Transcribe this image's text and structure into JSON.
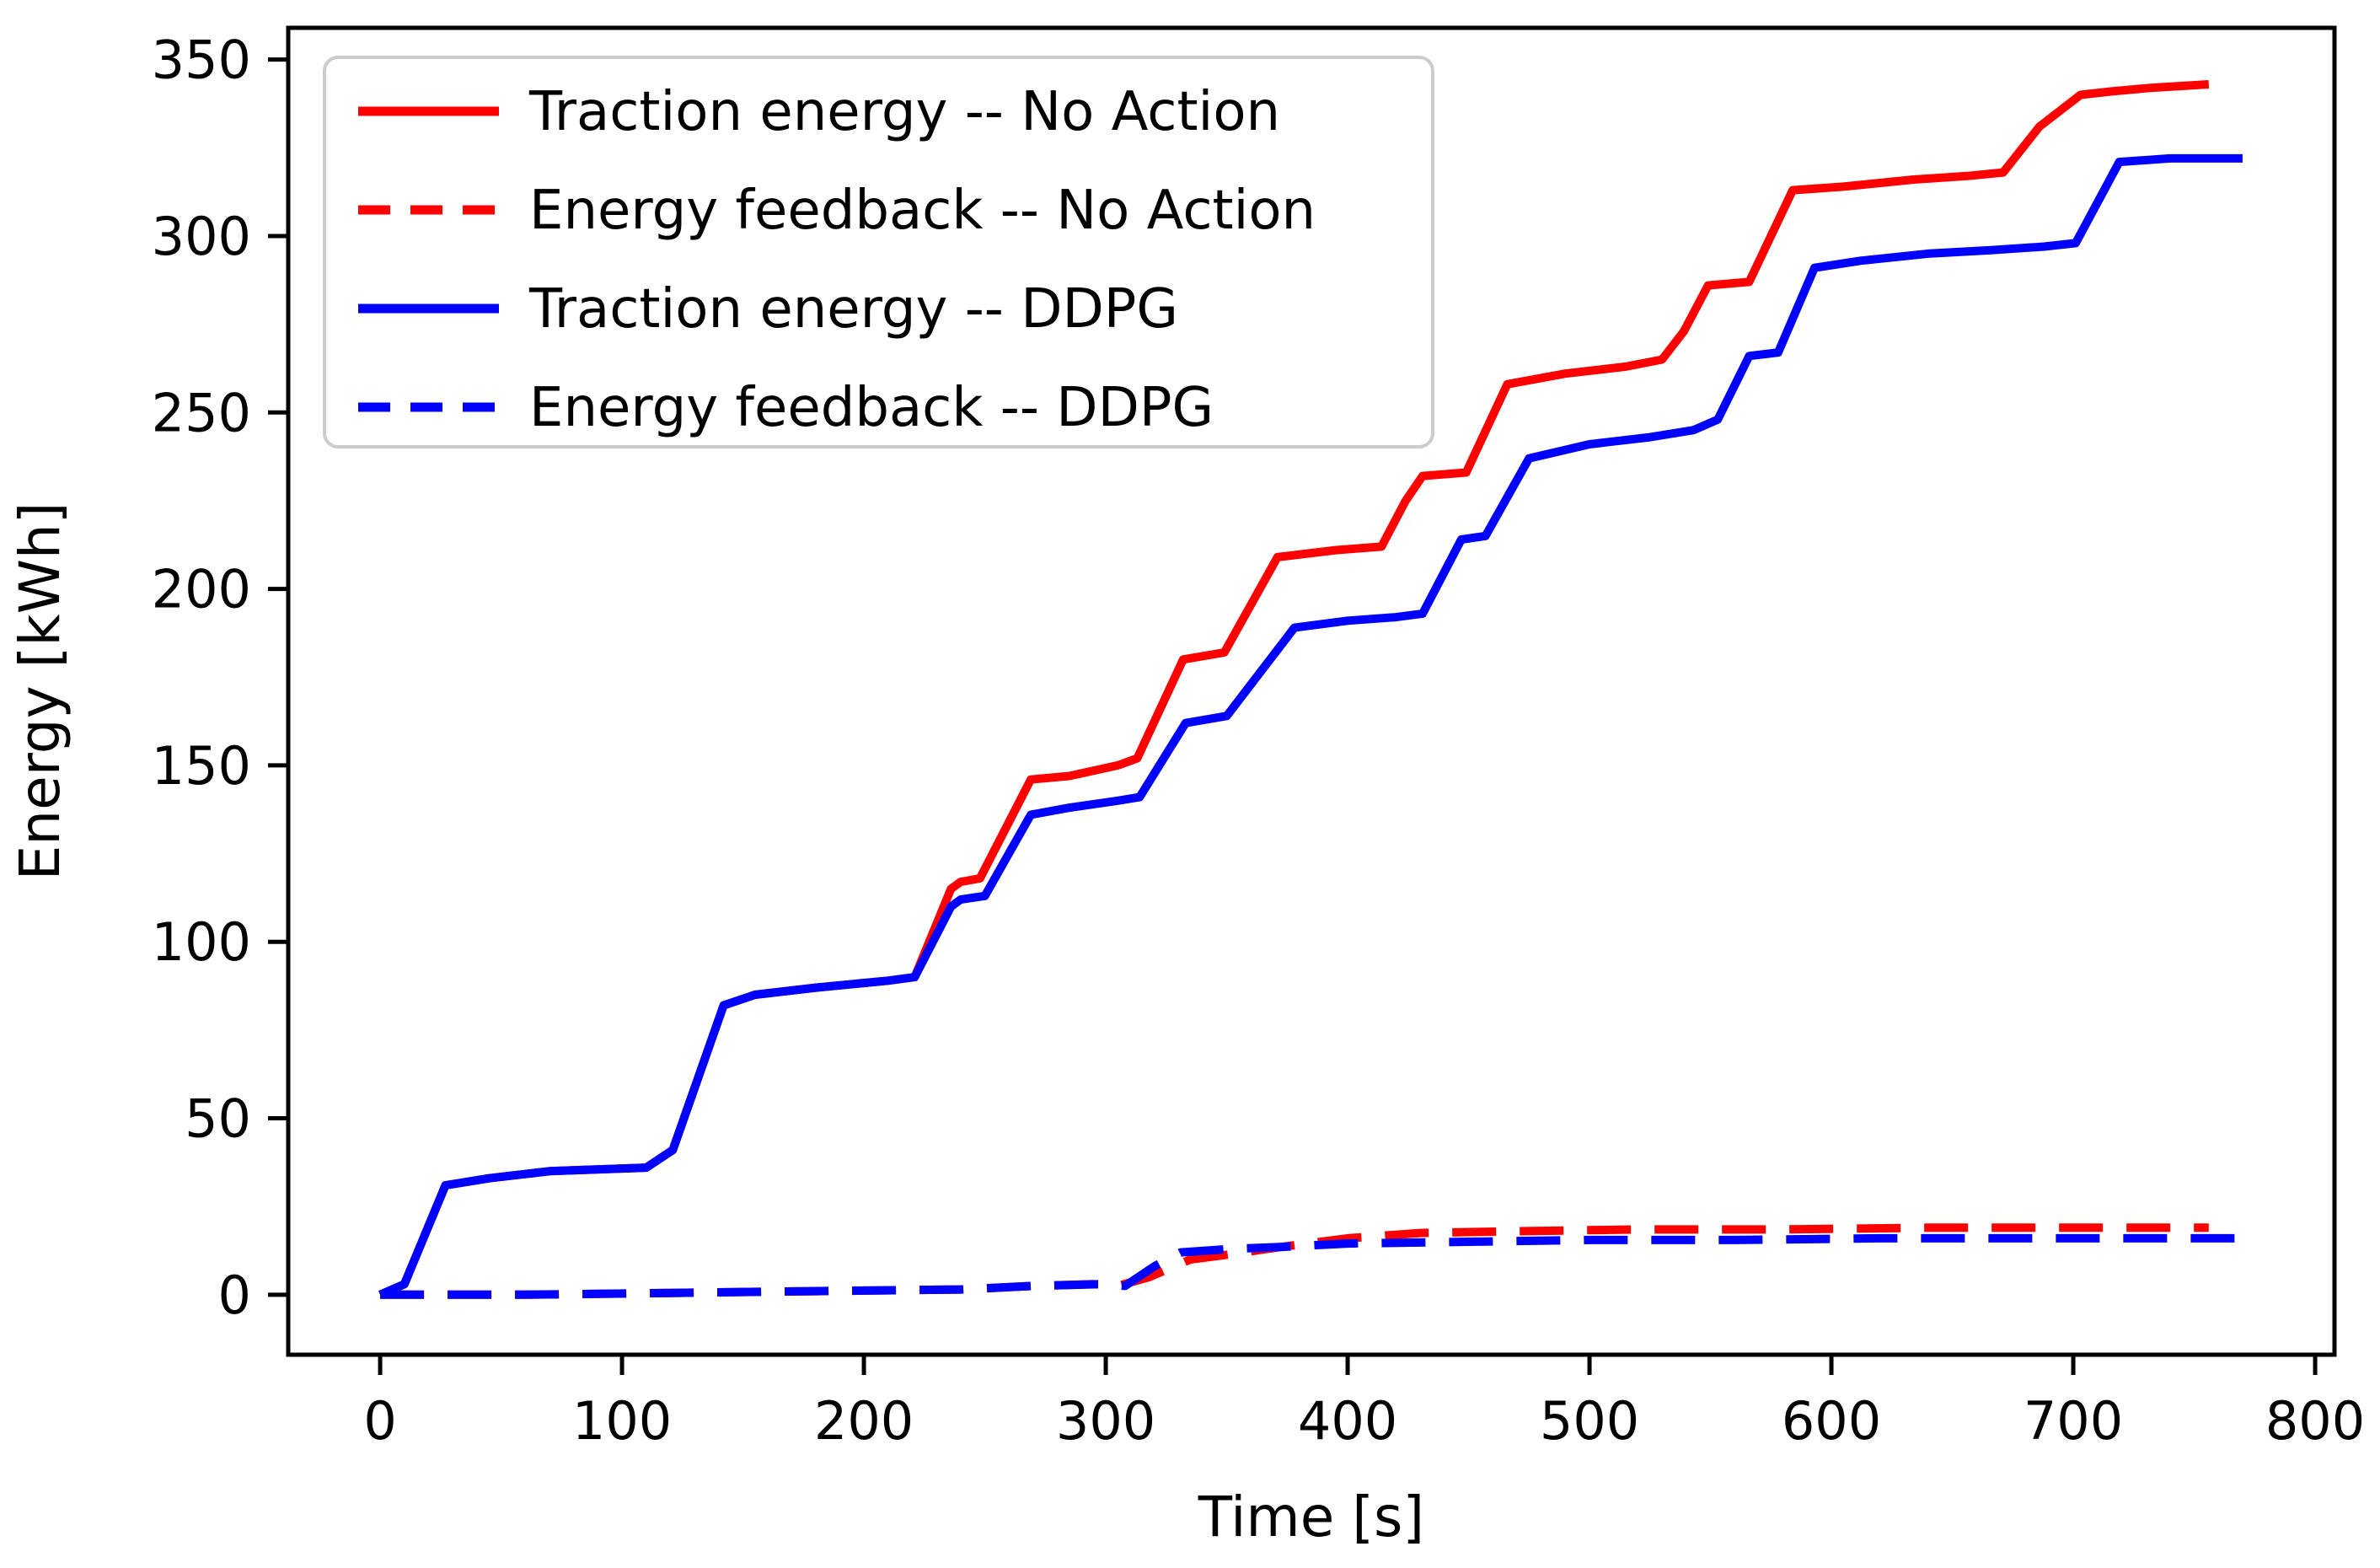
{
  "chart_data": {
    "type": "line",
    "title": "",
    "xlabel": "Time [s]",
    "ylabel": "Energy [kWh]",
    "xlim": [
      -38,
      808
    ],
    "ylim": [
      -17,
      359
    ],
    "x_ticks": [
      0,
      100,
      200,
      300,
      400,
      500,
      600,
      700,
      800
    ],
    "y_ticks": [
      0,
      50,
      100,
      150,
      200,
      250,
      300,
      350
    ],
    "grid": false,
    "legend_position": "upper left",
    "axis_color": "#000000",
    "legend_border_color": "#cccccc",
    "series": [
      {
        "name": "Traction energy -- No Action",
        "color": "#ff0000",
        "style": "solid",
        "points": [
          [
            0,
            0
          ],
          [
            10,
            3
          ],
          [
            27,
            31
          ],
          [
            45,
            33
          ],
          [
            70,
            35
          ],
          [
            110,
            36
          ],
          [
            121,
            41
          ],
          [
            142,
            82
          ],
          [
            155,
            85
          ],
          [
            180,
            87
          ],
          [
            210,
            89
          ],
          [
            221,
            90
          ],
          [
            236,
            115
          ],
          [
            240,
            117
          ],
          [
            248,
            118
          ],
          [
            269,
            146
          ],
          [
            285,
            147
          ],
          [
            305,
            150
          ],
          [
            313,
            152
          ],
          [
            332,
            180
          ],
          [
            349,
            182
          ],
          [
            371,
            209
          ],
          [
            395,
            211
          ],
          [
            414,
            212
          ],
          [
            424,
            225
          ],
          [
            431,
            232
          ],
          [
            449,
            233
          ],
          [
            466,
            258
          ],
          [
            490,
            261
          ],
          [
            515,
            263
          ],
          [
            530,
            265
          ],
          [
            539,
            273
          ],
          [
            549,
            286
          ],
          [
            566,
            287
          ],
          [
            584,
            313
          ],
          [
            605,
            314
          ],
          [
            634,
            316
          ],
          [
            656,
            317
          ],
          [
            671,
            318
          ],
          [
            686,
            331
          ],
          [
            703,
            340
          ],
          [
            716,
            341
          ],
          [
            732,
            342
          ],
          [
            756,
            343
          ]
        ]
      },
      {
        "name": "Energy feedback -- No Action",
        "color": "#ff0000",
        "style": "dashed",
        "points": [
          [
            0,
            0
          ],
          [
            60,
            0
          ],
          [
            120,
            0.5
          ],
          [
            180,
            1
          ],
          [
            240,
            1.5
          ],
          [
            270,
            2.5
          ],
          [
            295,
            3
          ],
          [
            305,
            2.5
          ],
          [
            318,
            5
          ],
          [
            335,
            10
          ],
          [
            352,
            11.5
          ],
          [
            372,
            13.5
          ],
          [
            400,
            16
          ],
          [
            430,
            17.5
          ],
          [
            470,
            18
          ],
          [
            520,
            18.5
          ],
          [
            580,
            18.5
          ],
          [
            640,
            19
          ],
          [
            700,
            19
          ],
          [
            756,
            19
          ]
        ]
      },
      {
        "name": "Traction energy -- DDPG",
        "color": "#0000ff",
        "style": "solid",
        "points": [
          [
            0,
            0
          ],
          [
            10,
            3
          ],
          [
            27,
            31
          ],
          [
            45,
            33
          ],
          [
            70,
            35
          ],
          [
            110,
            36
          ],
          [
            121,
            41
          ],
          [
            142,
            82
          ],
          [
            155,
            85
          ],
          [
            180,
            87
          ],
          [
            210,
            89
          ],
          [
            221,
            90
          ],
          [
            236,
            110
          ],
          [
            240,
            112
          ],
          [
            250,
            113
          ],
          [
            269,
            136
          ],
          [
            285,
            138
          ],
          [
            305,
            140
          ],
          [
            314,
            141
          ],
          [
            333,
            162
          ],
          [
            350,
            164
          ],
          [
            378,
            189
          ],
          [
            400,
            191
          ],
          [
            420,
            192
          ],
          [
            431,
            193
          ],
          [
            447,
            214
          ],
          [
            457,
            215
          ],
          [
            475,
            237
          ],
          [
            500,
            241
          ],
          [
            525,
            243
          ],
          [
            543,
            245
          ],
          [
            553,
            248
          ],
          [
            566,
            266
          ],
          [
            578,
            267
          ],
          [
            593,
            291
          ],
          [
            612,
            293
          ],
          [
            640,
            295
          ],
          [
            666,
            296
          ],
          [
            688,
            297
          ],
          [
            701,
            298
          ],
          [
            719,
            321
          ],
          [
            740,
            322
          ],
          [
            770,
            322
          ]
        ]
      },
      {
        "name": "Energy feedback -- DDPG",
        "color": "#0000ff",
        "style": "dashed",
        "points": [
          [
            0,
            0
          ],
          [
            60,
            0
          ],
          [
            120,
            0.5
          ],
          [
            180,
            1
          ],
          [
            240,
            1.5
          ],
          [
            270,
            2.5
          ],
          [
            298,
            3
          ],
          [
            308,
            2.5
          ],
          [
            320,
            8
          ],
          [
            331,
            12
          ],
          [
            352,
            13
          ],
          [
            372,
            13.5
          ],
          [
            400,
            14.5
          ],
          [
            450,
            15
          ],
          [
            500,
            15.5
          ],
          [
            560,
            15.5
          ],
          [
            620,
            16
          ],
          [
            680,
            16
          ],
          [
            730,
            16
          ],
          [
            770,
            16
          ]
        ]
      }
    ]
  }
}
